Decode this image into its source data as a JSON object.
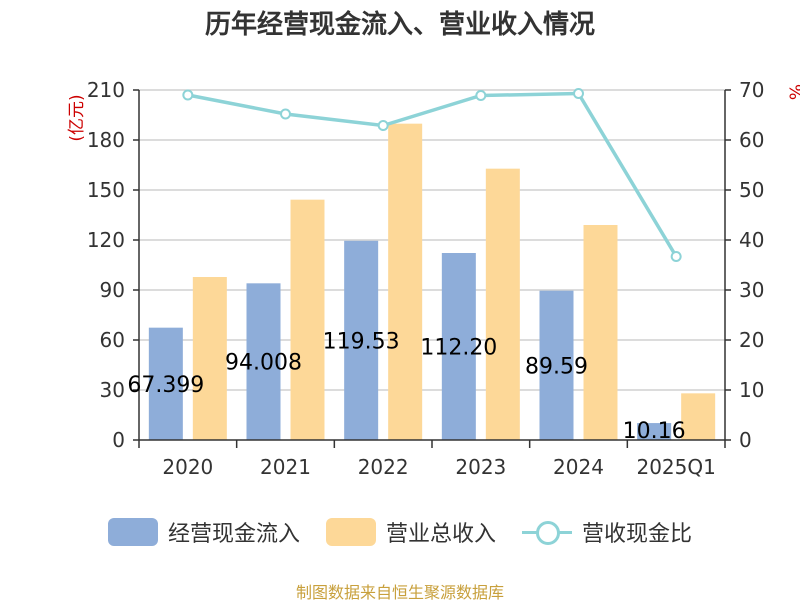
{
  "chart_data": {
    "type": "bar",
    "title": "历年经营现金流入、营业收入情况",
    "categories": [
      "2020",
      "2021",
      "2022",
      "2023",
      "2024",
      "2025Q1"
    ],
    "series": [
      {
        "name": "经营现金流入",
        "type": "bar",
        "axis": "left",
        "color": "#8eadd9",
        "values": [
          67.399,
          94.008,
          119.53,
          112.2,
          89.59,
          10.16
        ],
        "labels": [
          "67.399",
          "94.008",
          "119.53",
          "112.20",
          "89.59",
          "10.16"
        ]
      },
      {
        "name": "营业总收入",
        "type": "bar",
        "axis": "left",
        "color": "#fdd898",
        "values": [
          97.8,
          144.2,
          189.8,
          162.8,
          129.0,
          28.0
        ]
      },
      {
        "name": "营收现金比",
        "type": "line",
        "axis": "right",
        "color": "#8dd3d7",
        "values": [
          69.0,
          65.2,
          62.9,
          68.9,
          69.3,
          36.7
        ]
      }
    ],
    "ylabel": "(亿元)",
    "ylim": [
      0,
      210
    ],
    "yticks": [
      0,
      30,
      60,
      90,
      120,
      150,
      180,
      210
    ],
    "y2label": "%",
    "y2lim": [
      0,
      70
    ],
    "y2ticks": [
      0,
      10,
      20,
      30,
      40,
      50,
      60,
      70
    ],
    "grid": true,
    "legend": "bottom"
  },
  "source": "制图数据来自恒生聚源数据库"
}
